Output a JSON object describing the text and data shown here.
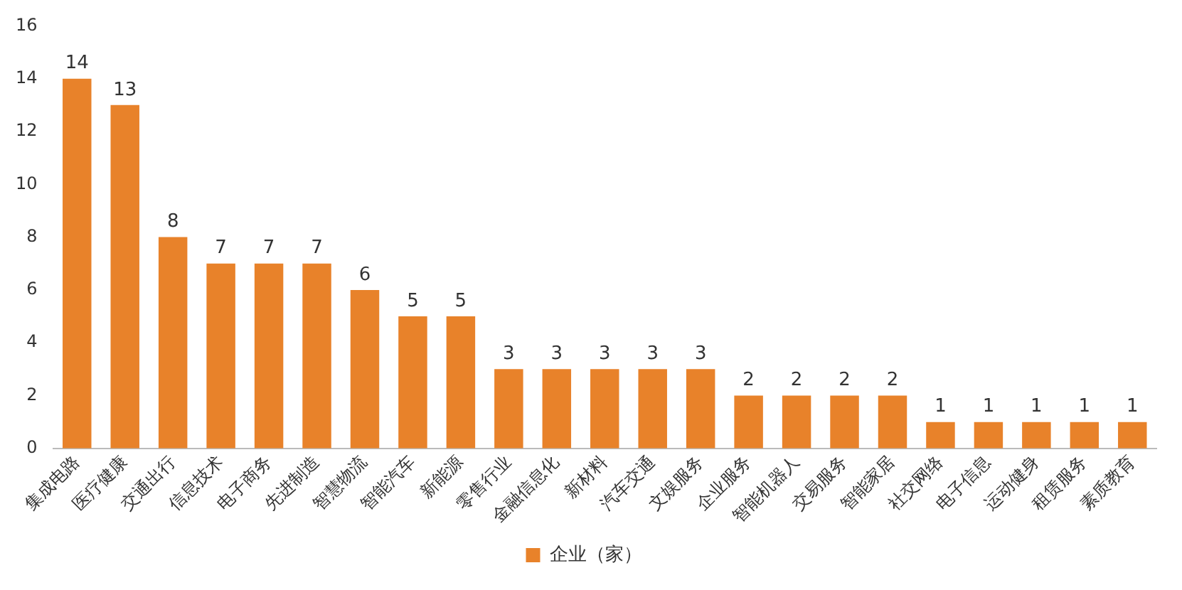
{
  "chart_data": {
    "type": "bar",
    "categories": [
      "集成电路",
      "医疗健康",
      "交通出行",
      "信息技术",
      "电子商务",
      "先进制造",
      "智慧物流",
      "智能汽车",
      "新能源",
      "零售行业",
      "金融信息化",
      "新材料",
      "汽车交通",
      "文娱服务",
      "企业服务",
      "智能机器人",
      "交易服务",
      "智能家居",
      "社交网络",
      "电子信息",
      "运动健身",
      "租赁服务",
      "素质教育"
    ],
    "series": [
      {
        "name": "企业（家）",
        "color": "#e8822a",
        "values": [
          14,
          13,
          8,
          7,
          7,
          7,
          6,
          5,
          5,
          3,
          3,
          3,
          3,
          3,
          2,
          2,
          2,
          2,
          1,
          1,
          1,
          1,
          1
        ]
      }
    ],
    "ylim": [
      0,
      16
    ],
    "yticks": [
      0,
      2,
      4,
      6,
      8,
      10,
      12,
      14,
      16
    ],
    "grid": false,
    "legend": "bottom",
    "data_labels": true
  }
}
